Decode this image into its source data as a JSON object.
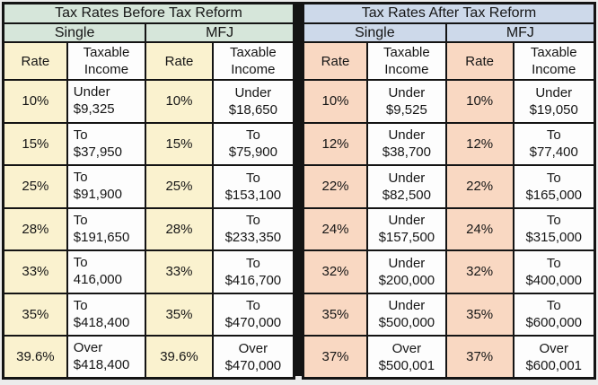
{
  "page": {
    "background": "#ececec",
    "border_color": "#141414"
  },
  "chart_data": [
    {
      "type": "table",
      "title": "Tax Rates Before Tax Reform",
      "group_headers": [
        "Single",
        "MFJ"
      ],
      "column_headers": [
        "Rate",
        "Taxable\nIncome",
        "Rate",
        "Taxable\nIncome"
      ],
      "rows": [
        [
          "10%",
          "Under\n$9,325",
          "10%",
          "Under\n$18,650"
        ],
        [
          "15%",
          "To\n$37,950",
          "15%",
          "To\n$75,900"
        ],
        [
          "25%",
          "To\n$91,900",
          "25%",
          "To\n$153,100"
        ],
        [
          "28%",
          "To\n$191,650",
          "28%",
          "To\n$233,350"
        ],
        [
          "33%",
          "To\n416,000",
          "33%",
          "To\n$416,700"
        ],
        [
          "35%",
          "To\n$418,400",
          "35%",
          "To\n$470,000"
        ],
        [
          "39.6%",
          "Over\n$418,400",
          "39.6%",
          "Over\n$470,000"
        ]
      ],
      "colors": {
        "header_bg": "#d6e6da",
        "rate_bg": "#faf2cf",
        "income_bg": "#fdfdfd"
      }
    },
    {
      "type": "table",
      "title": "Tax Rates After Tax Reform",
      "group_headers": [
        "Single",
        "MFJ"
      ],
      "column_headers": [
        "Rate",
        "Taxable\nIncome",
        "Rate",
        "Taxable\nIncome"
      ],
      "rows": [
        [
          "10%",
          "Under\n$9,525",
          "10%",
          "Under\n$19,050"
        ],
        [
          "12%",
          "Under\n$38,700",
          "12%",
          "To\n$77,400"
        ],
        [
          "22%",
          "Under\n$82,500",
          "22%",
          "To\n$165,000"
        ],
        [
          "24%",
          "Under\n$157,500",
          "24%",
          "To\n$315,000"
        ],
        [
          "32%",
          "Under\n$200,000",
          "32%",
          "To\n$400,000"
        ],
        [
          "35%",
          "Under\n$500,000",
          "35%",
          "To\n$600,000"
        ],
        [
          "37%",
          "Over\n$500,001",
          "37%",
          "Over\n$600,001"
        ]
      ],
      "colors": {
        "header_bg": "#cdd9ea",
        "rate_bg": "#f9d8c2",
        "income_bg": "#fdfdfd"
      }
    }
  ]
}
